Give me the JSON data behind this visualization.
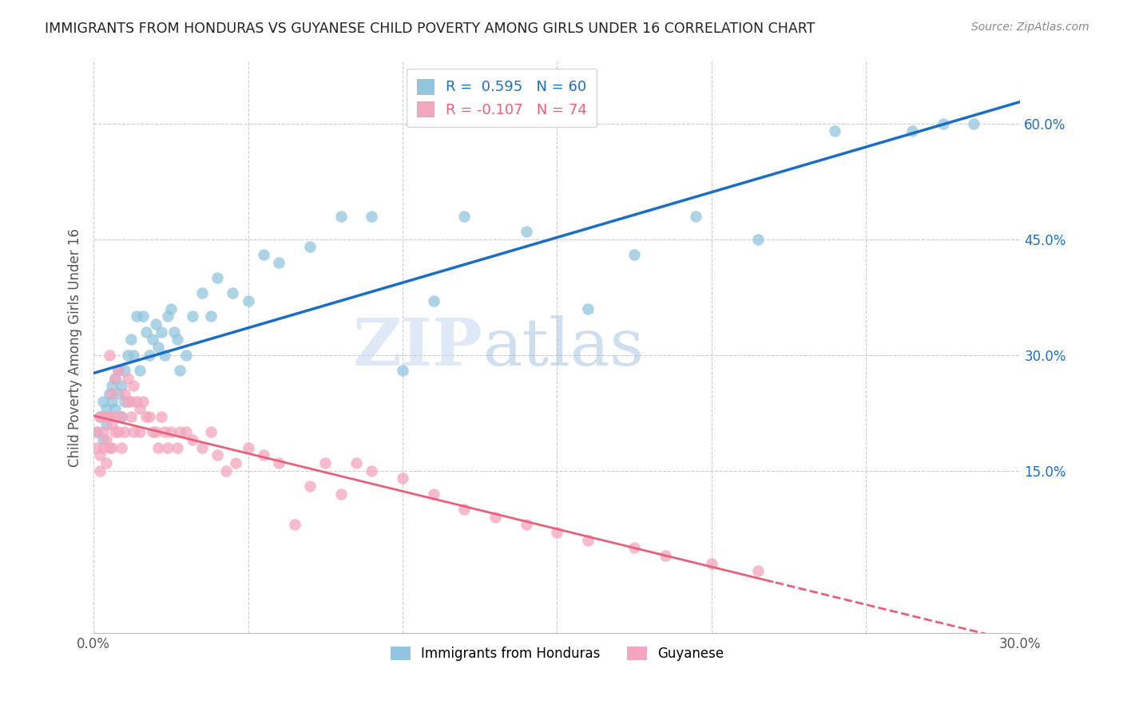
{
  "title": "IMMIGRANTS FROM HONDURAS VS GUYANESE CHILD POVERTY AMONG GIRLS UNDER 16 CORRELATION CHART",
  "source": "Source: ZipAtlas.com",
  "ylabel": "Child Poverty Among Girls Under 16",
  "y_ticks_right": [
    0.15,
    0.3,
    0.45,
    0.6
  ],
  "y_tick_labels_right": [
    "15.0%",
    "30.0%",
    "45.0%",
    "60.0%"
  ],
  "xlim": [
    0.0,
    0.3
  ],
  "ylim": [
    -0.06,
    0.68
  ],
  "blue_color": "#92c5de",
  "pink_color": "#f4a6be",
  "blue_line_color": "#1a6fc4",
  "pink_line_color": "#e8607a",
  "legend_blue_label": "R =  0.595   N = 60",
  "legend_pink_label": "R = -0.107   N = 74",
  "watermark": "ZIPatlas",
  "legend_label_blue": "Immigrants from Honduras",
  "legend_label_pink": "Guyanese",
  "blue_scatter_x": [
    0.001,
    0.002,
    0.003,
    0.003,
    0.004,
    0.004,
    0.005,
    0.005,
    0.006,
    0.006,
    0.007,
    0.007,
    0.008,
    0.008,
    0.009,
    0.009,
    0.01,
    0.01,
    0.011,
    0.012,
    0.013,
    0.014,
    0.015,
    0.016,
    0.017,
    0.018,
    0.019,
    0.02,
    0.021,
    0.022,
    0.023,
    0.024,
    0.025,
    0.026,
    0.027,
    0.028,
    0.03,
    0.032,
    0.035,
    0.038,
    0.04,
    0.045,
    0.05,
    0.055,
    0.06,
    0.07,
    0.08,
    0.09,
    0.1,
    0.11,
    0.12,
    0.14,
    0.16,
    0.175,
    0.195,
    0.215,
    0.24,
    0.265,
    0.275,
    0.285
  ],
  "blue_scatter_y": [
    0.2,
    0.22,
    0.19,
    0.24,
    0.23,
    0.21,
    0.25,
    0.22,
    0.24,
    0.26,
    0.23,
    0.27,
    0.25,
    0.28,
    0.22,
    0.26,
    0.24,
    0.28,
    0.3,
    0.32,
    0.3,
    0.35,
    0.28,
    0.35,
    0.33,
    0.3,
    0.32,
    0.34,
    0.31,
    0.33,
    0.3,
    0.35,
    0.36,
    0.33,
    0.32,
    0.28,
    0.3,
    0.35,
    0.38,
    0.35,
    0.4,
    0.38,
    0.37,
    0.43,
    0.42,
    0.44,
    0.48,
    0.48,
    0.28,
    0.37,
    0.48,
    0.46,
    0.36,
    0.43,
    0.48,
    0.45,
    0.59,
    0.59,
    0.6,
    0.6
  ],
  "pink_scatter_x": [
    0.001,
    0.001,
    0.002,
    0.002,
    0.002,
    0.003,
    0.003,
    0.003,
    0.004,
    0.004,
    0.004,
    0.005,
    0.005,
    0.005,
    0.006,
    0.006,
    0.006,
    0.007,
    0.007,
    0.007,
    0.008,
    0.008,
    0.009,
    0.009,
    0.01,
    0.01,
    0.011,
    0.011,
    0.012,
    0.012,
    0.013,
    0.013,
    0.014,
    0.015,
    0.015,
    0.016,
    0.017,
    0.018,
    0.019,
    0.02,
    0.021,
    0.022,
    0.023,
    0.024,
    0.025,
    0.027,
    0.028,
    0.03,
    0.032,
    0.035,
    0.038,
    0.04,
    0.043,
    0.046,
    0.05,
    0.055,
    0.06,
    0.065,
    0.07,
    0.075,
    0.08,
    0.085,
    0.09,
    0.1,
    0.11,
    0.12,
    0.13,
    0.14,
    0.15,
    0.16,
    0.175,
    0.185,
    0.2,
    0.215
  ],
  "pink_scatter_y": [
    0.2,
    0.18,
    0.22,
    0.17,
    0.15,
    0.2,
    0.18,
    0.22,
    0.19,
    0.16,
    0.22,
    0.3,
    0.18,
    0.22,
    0.21,
    0.18,
    0.25,
    0.2,
    0.27,
    0.22,
    0.28,
    0.2,
    0.22,
    0.18,
    0.25,
    0.2,
    0.24,
    0.27,
    0.22,
    0.24,
    0.26,
    0.2,
    0.24,
    0.23,
    0.2,
    0.24,
    0.22,
    0.22,
    0.2,
    0.2,
    0.18,
    0.22,
    0.2,
    0.18,
    0.2,
    0.18,
    0.2,
    0.2,
    0.19,
    0.18,
    0.2,
    0.17,
    0.15,
    0.16,
    0.18,
    0.17,
    0.16,
    0.08,
    0.13,
    0.16,
    0.12,
    0.16,
    0.15,
    0.14,
    0.12,
    0.1,
    0.09,
    0.08,
    0.07,
    0.06,
    0.05,
    0.04,
    0.03,
    0.02
  ]
}
